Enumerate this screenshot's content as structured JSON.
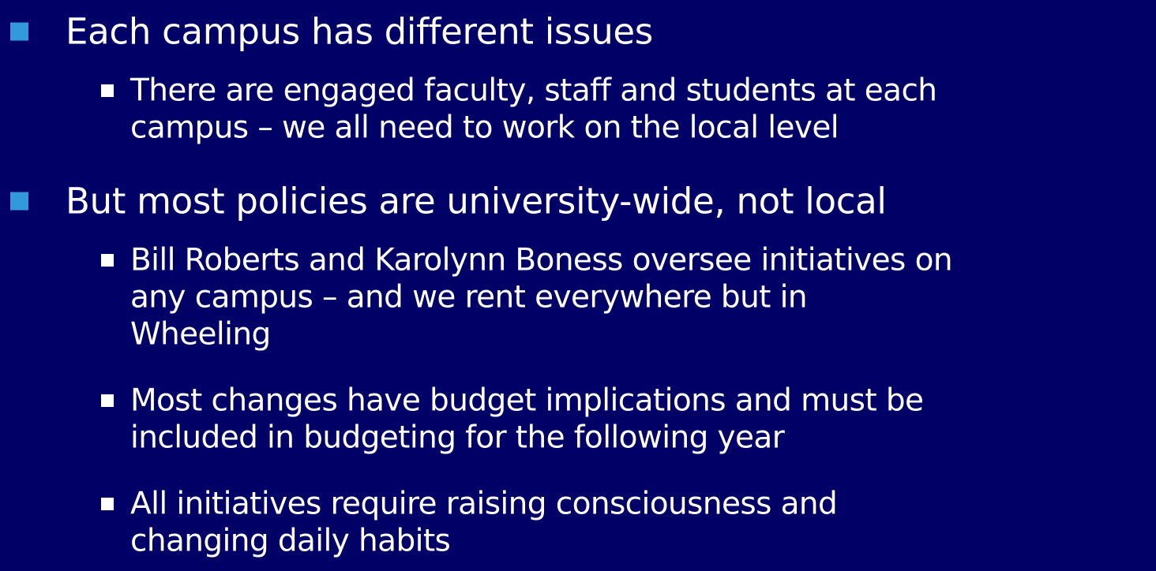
{
  "slide": {
    "bullets": [
      {
        "text": "Each campus has different issues",
        "sub": [
          {
            "lines": [
              "There are engaged faculty, staff and students at each",
              "campus – we all need to work on the local level"
            ]
          }
        ]
      },
      {
        "text": "But most policies are university-wide, not local",
        "sub": [
          {
            "lines": [
              "Bill Roberts and Karolynn Boness oversee initiatives on",
              "any campus – and we rent everywhere but in",
              "Wheeling"
            ]
          },
          {
            "lines": [
              "Most changes have budget implications and must be",
              "included in budgeting for the following year"
            ]
          },
          {
            "lines": [
              "All initiatives require raising consciousness and",
              "changing daily habits"
            ]
          }
        ]
      }
    ]
  }
}
